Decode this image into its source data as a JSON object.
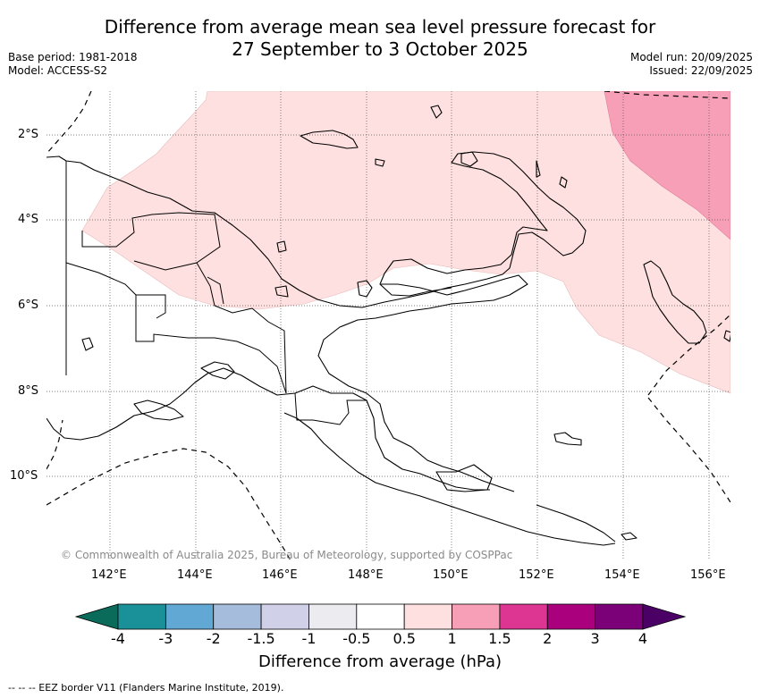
{
  "header": {
    "title_line1": "Difference from average mean sea level pressure forecast for",
    "title_line2": "27 September to 3 October 2025",
    "base_period": "Base period: 1981-2018",
    "model": "Model: ACCESS-S2",
    "model_run": "Model run: 20/09/2025",
    "issued": "Issued: 22/09/2025"
  },
  "map": {
    "region": "Papua New Guinea",
    "lat_labels": [
      "2°S",
      "4°S",
      "6°S",
      "8°S",
      "10°S"
    ],
    "lon_labels": [
      "142°E",
      "144°E",
      "146°E",
      "148°E",
      "150°E",
      "152°E",
      "154°E",
      "156°E"
    ],
    "copyright": "© Commonwealth of Australia 2025, Bureau of Meteorology, supported by COSPPac"
  },
  "colorbar": {
    "title": "Difference from average (hPa)",
    "ticks": [
      "-4",
      "-3",
      "-2",
      "-1.5",
      "-1",
      "-0.5",
      "0.5",
      "1",
      "1.5",
      "2",
      "3",
      "4"
    ],
    "colors": [
      "#0a6b5a",
      "#1a9098",
      "#62a8d4",
      "#a6bcdc",
      "#d0d0e8",
      "#ecebf0",
      "#ffffff",
      "#fde0df",
      "#f89fb8",
      "#dd3592",
      "#ab007e",
      "#7a0177",
      "#4b0066"
    ]
  },
  "footnote": "-- -- -- EEZ border V11 (Flanders Marine Institute, 2019)."
}
